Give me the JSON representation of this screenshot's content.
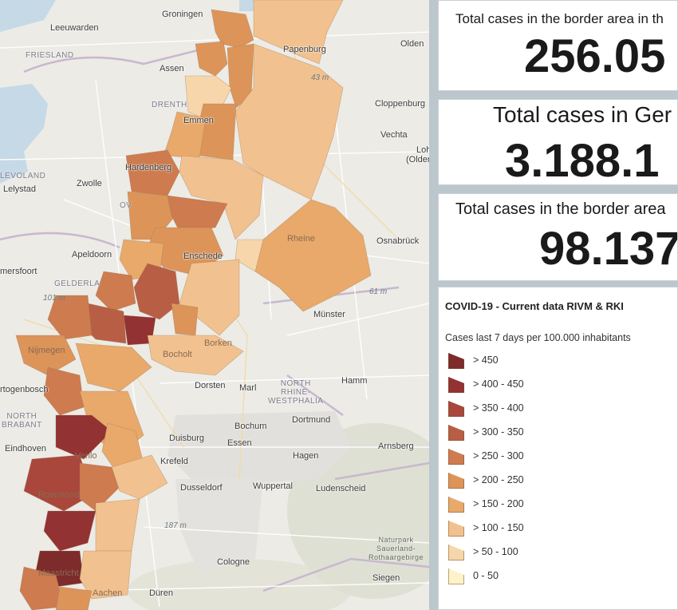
{
  "map": {
    "places": [
      {
        "id": "groningen",
        "label": "Groningen"
      },
      {
        "id": "leeuwarden",
        "label": "Leeuwarden"
      },
      {
        "id": "assen",
        "label": "Assen"
      },
      {
        "id": "papenburg",
        "label": "Papenburg"
      },
      {
        "id": "oldenburg",
        "label": "Olden"
      },
      {
        "id": "cloppenburg",
        "label": "Cloppenburg"
      },
      {
        "id": "emmen",
        "label": "Emmen"
      },
      {
        "id": "vechta",
        "label": "Vechta"
      },
      {
        "id": "lohne",
        "label": "Loh"
      },
      {
        "id": "oldenburg2",
        "label": "(Olden"
      },
      {
        "id": "zwolle",
        "label": "Zwolle"
      },
      {
        "id": "lelystad",
        "label": "Lelystad"
      },
      {
        "id": "hardenberg",
        "label": "Hardenberg"
      },
      {
        "id": "apeldoorn",
        "label": "Apeldoorn"
      },
      {
        "id": "enschede",
        "label": "Enschede"
      },
      {
        "id": "rheine",
        "label": "Rheine"
      },
      {
        "id": "osnabruck",
        "label": "Osnabrück"
      },
      {
        "id": "amersfoort",
        "label": "mersfoort"
      },
      {
        "id": "munster",
        "label": "Münster"
      },
      {
        "id": "nijmegen",
        "label": "Nijmegen"
      },
      {
        "id": "bocholt",
        "label": "Bocholt"
      },
      {
        "id": "borken",
        "label": "Borken"
      },
      {
        "id": "hertogenbosch",
        "label": "rtogenbosch"
      },
      {
        "id": "dorsten",
        "label": "Dorsten"
      },
      {
        "id": "marl",
        "label": "Marl"
      },
      {
        "id": "hamm",
        "label": "Hamm"
      },
      {
        "id": "dortmund",
        "label": "Dortmund"
      },
      {
        "id": "bochum",
        "label": "Bochum"
      },
      {
        "id": "eindhoven",
        "label": "Eindhoven"
      },
      {
        "id": "venlo",
        "label": "Venlo"
      },
      {
        "id": "duisburg",
        "label": "Duisburg"
      },
      {
        "id": "essen",
        "label": "Essen"
      },
      {
        "id": "hagen",
        "label": "Hagen"
      },
      {
        "id": "arnsberg",
        "label": "Arnsberg"
      },
      {
        "id": "krefeld",
        "label": "Krefeld"
      },
      {
        "id": "dusseldorf",
        "label": "Dusseldorf"
      },
      {
        "id": "wuppertal",
        "label": "Wuppertal"
      },
      {
        "id": "ludenscheid",
        "label": "Ludenscheid"
      },
      {
        "id": "roermond",
        "label": "Roermond"
      },
      {
        "id": "cologne",
        "label": "Cologne"
      },
      {
        "id": "siegen",
        "label": "Siegen"
      },
      {
        "id": "maastricht",
        "label": "Maastricht"
      },
      {
        "id": "aachen",
        "label": "Aachen"
      },
      {
        "id": "duren",
        "label": "Düren"
      }
    ],
    "regions": [
      {
        "id": "friesland",
        "label": "FRIESLAND"
      },
      {
        "id": "drenthe",
        "label": "DRENTH"
      },
      {
        "id": "flevoland",
        "label": "LEVOLAND"
      },
      {
        "id": "gelderland",
        "label": "GELDERLA"
      },
      {
        "id": "nrw",
        "label": "NORTH\nRHINE-\nWESTPHALIA"
      },
      {
        "id": "brabant",
        "label": "NORTH\nBRABANT"
      },
      {
        "id": "ov",
        "label": "OV"
      },
      {
        "id": "naturpark",
        "label": "Naturpark\nSauerland-\nRothaargebirge"
      }
    ],
    "elevations": [
      {
        "id": "e43",
        "label": "43 m"
      },
      {
        "id": "e61",
        "label": "61 m"
      },
      {
        "id": "e101",
        "label": "101 m"
      },
      {
        "id": "e187",
        "label": "187 m"
      }
    ]
  },
  "cards": [
    {
      "id": "border-total",
      "title": "Total cases in the border area in th",
      "value": "256.05"
    },
    {
      "id": "germany-total",
      "title": "Total cases in Ger",
      "value": "3.188.1"
    },
    {
      "id": "border-de-total",
      "title": "Total cases in the border area",
      "value": "98.137"
    }
  ],
  "legend": {
    "title": "COVID-19 - Current data RIVM & RKI",
    "subtitle": "Cases last 7 days per 100.000 inhabitants",
    "items": [
      {
        "label": "> 450",
        "color": "#7e2b2b"
      },
      {
        "label": "> 400 - 450",
        "color": "#923233"
      },
      {
        "label": "> 350 - 400",
        "color": "#a9473c"
      },
      {
        "label": "> 300 - 350",
        "color": "#b85e45"
      },
      {
        "label": "> 250 - 300",
        "color": "#cd7b4f"
      },
      {
        "label": "> 200 - 250",
        "color": "#dc9459"
      },
      {
        "label": "> 150 - 200",
        "color": "#e8a96b"
      },
      {
        "label": "> 100 - 150",
        "color": "#f1c28f"
      },
      {
        "label": "> 50 - 100",
        "color": "#f6d6aa"
      },
      {
        "label": "0 - 50",
        "color": "#fdf3c8"
      }
    ]
  }
}
